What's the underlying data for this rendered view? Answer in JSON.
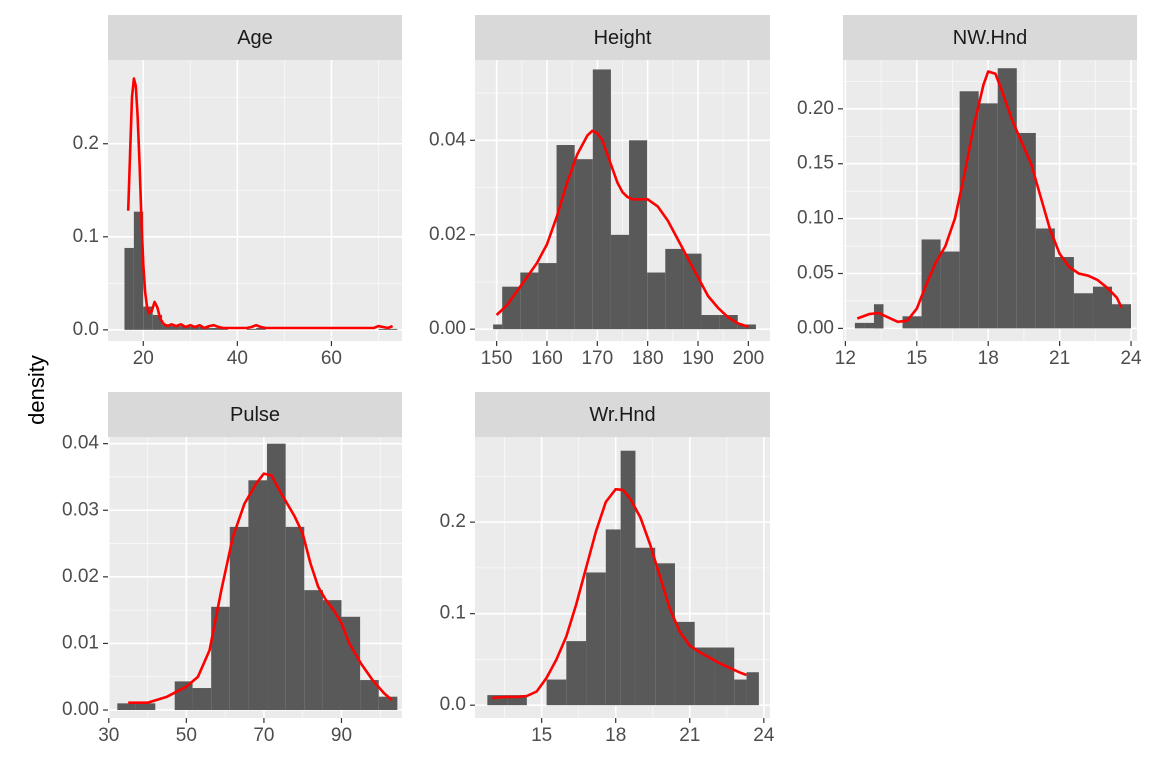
{
  "figure": {
    "ylabel": "density",
    "colors": {
      "panel_background": "#ebebeb",
      "strip_background": "#d9d9d9",
      "grid_major": "#ffffff",
      "bar_fill": "#595959",
      "density_line": "#ff0000"
    }
  },
  "chart_data": [
    {
      "type": "bar",
      "panel": "Age",
      "title": "Age",
      "xlabel": "",
      "ylabel": "density",
      "xlim": [
        12.5,
        75
      ],
      "ylim": [
        -0.012,
        0.29
      ],
      "x_ticks": [
        20,
        40,
        60
      ],
      "x_tick_labels": [
        "20",
        "40",
        "60"
      ],
      "y_ticks": [
        0.0,
        0.1,
        0.2
      ],
      "y_tick_labels": [
        "0.0",
        "0.1",
        "0.2"
      ],
      "bins": [
        {
          "x0": 16,
          "x1": 18,
          "density": 0.088
        },
        {
          "x0": 18,
          "x1": 20,
          "density": 0.127
        },
        {
          "x0": 20,
          "x1": 22,
          "density": 0.025
        },
        {
          "x0": 22,
          "x1": 24,
          "density": 0.016
        },
        {
          "x0": 24,
          "x1": 26,
          "density": 0.006
        },
        {
          "x0": 26,
          "x1": 28,
          "density": 0.004
        },
        {
          "x0": 28,
          "x1": 30,
          "density": 0.004
        },
        {
          "x0": 30,
          "x1": 32,
          "density": 0.003
        },
        {
          "x0": 32,
          "x1": 34,
          "density": 0.003
        },
        {
          "x0": 34,
          "x1": 36,
          "density": 0.002
        },
        {
          "x0": 36,
          "x1": 38,
          "density": 0.002
        },
        {
          "x0": 42,
          "x1": 44,
          "density": 0.001
        },
        {
          "x0": 44,
          "x1": 46,
          "density": 0.002
        },
        {
          "x0": 70,
          "x1": 72,
          "density": 0.001
        },
        {
          "x0": 72,
          "x1": 74,
          "density": 0.001
        }
      ],
      "density_curve": [
        [
          16.8,
          0.128
        ],
        [
          17.2,
          0.19
        ],
        [
          17.6,
          0.25
        ],
        [
          18.0,
          0.27
        ],
        [
          18.4,
          0.262
        ],
        [
          18.8,
          0.23
        ],
        [
          19.2,
          0.18
        ],
        [
          19.6,
          0.12
        ],
        [
          20.0,
          0.07
        ],
        [
          20.4,
          0.04
        ],
        [
          20.8,
          0.025
        ],
        [
          21.2,
          0.018
        ],
        [
          21.8,
          0.02
        ],
        [
          22.4,
          0.03
        ],
        [
          23.0,
          0.024
        ],
        [
          23.6,
          0.012
        ],
        [
          24.4,
          0.006
        ],
        [
          25.2,
          0.004
        ],
        [
          26.0,
          0.006
        ],
        [
          27.0,
          0.004
        ],
        [
          28.0,
          0.006
        ],
        [
          29.0,
          0.003
        ],
        [
          30.0,
          0.005
        ],
        [
          31.0,
          0.003
        ],
        [
          32.0,
          0.005
        ],
        [
          33.0,
          0.002
        ],
        [
          34.0,
          0.004
        ],
        [
          35.0,
          0.005
        ],
        [
          36.0,
          0.003
        ],
        [
          37.0,
          0.002
        ],
        [
          38.0,
          0.002
        ],
        [
          40.0,
          0.002
        ],
        [
          42.0,
          0.002
        ],
        [
          43.0,
          0.003
        ],
        [
          44.0,
          0.005
        ],
        [
          45.0,
          0.003
        ],
        [
          46.0,
          0.002
        ],
        [
          50.0,
          0.002
        ],
        [
          55.0,
          0.002
        ],
        [
          60.0,
          0.002
        ],
        [
          65.0,
          0.002
        ],
        [
          69.0,
          0.002
        ],
        [
          70.0,
          0.004
        ],
        [
          71.0,
          0.003
        ],
        [
          72.0,
          0.002
        ],
        [
          73.0,
          0.004
        ]
      ]
    },
    {
      "type": "bar",
      "panel": "Height",
      "title": "Height",
      "xlabel": "",
      "ylabel": "density",
      "xlim": [
        145.7,
        204.3
      ],
      "ylim": [
        -0.0025,
        0.057
      ],
      "x_ticks": [
        150,
        160,
        170,
        180,
        190,
        200
      ],
      "x_tick_labels": [
        "150",
        "160",
        "170",
        "180",
        "190",
        "200"
      ],
      "y_ticks": [
        0.0,
        0.02,
        0.04
      ],
      "y_tick_labels": [
        "0.00",
        "0.02",
        "0.04"
      ],
      "bins": [
        {
          "x0": 149.3,
          "x1": 151.1,
          "density": 0.001
        },
        {
          "x0": 151.1,
          "x1": 154.7,
          "density": 0.009
        },
        {
          "x0": 154.7,
          "x1": 158.3,
          "density": 0.012
        },
        {
          "x0": 158.3,
          "x1": 161.9,
          "density": 0.014
        },
        {
          "x0": 161.9,
          "x1": 165.5,
          "density": 0.039
        },
        {
          "x0": 165.5,
          "x1": 169.1,
          "density": 0.036
        },
        {
          "x0": 169.1,
          "x1": 172.7,
          "density": 0.055
        },
        {
          "x0": 172.7,
          "x1": 176.3,
          "density": 0.02
        },
        {
          "x0": 176.3,
          "x1": 179.9,
          "density": 0.04
        },
        {
          "x0": 179.9,
          "x1": 183.5,
          "density": 0.012
        },
        {
          "x0": 183.5,
          "x1": 187.1,
          "density": 0.017
        },
        {
          "x0": 187.1,
          "x1": 190.7,
          "density": 0.016
        },
        {
          "x0": 190.7,
          "x1": 194.3,
          "density": 0.003
        },
        {
          "x0": 194.3,
          "x1": 197.9,
          "density": 0.003
        },
        {
          "x0": 197.9,
          "x1": 201.5,
          "density": 0.001
        }
      ],
      "density_curve": [
        [
          150.0,
          0.003
        ],
        [
          152.0,
          0.005
        ],
        [
          154.0,
          0.008
        ],
        [
          156.0,
          0.011
        ],
        [
          158.0,
          0.014
        ],
        [
          160.0,
          0.018
        ],
        [
          162.0,
          0.024
        ],
        [
          164.0,
          0.031
        ],
        [
          166.0,
          0.037
        ],
        [
          168.0,
          0.041
        ],
        [
          169.0,
          0.042
        ],
        [
          170.0,
          0.0415
        ],
        [
          171.0,
          0.04
        ],
        [
          172.0,
          0.037
        ],
        [
          173.0,
          0.034
        ],
        [
          174.0,
          0.031
        ],
        [
          175.0,
          0.029
        ],
        [
          176.0,
          0.028
        ],
        [
          177.0,
          0.0275
        ],
        [
          178.0,
          0.0275
        ],
        [
          180.0,
          0.0275
        ],
        [
          182.0,
          0.026
        ],
        [
          184.0,
          0.023
        ],
        [
          186.0,
          0.019
        ],
        [
          188.0,
          0.015
        ],
        [
          190.0,
          0.011
        ],
        [
          192.0,
          0.007
        ],
        [
          194.0,
          0.0045
        ],
        [
          196.0,
          0.0025
        ],
        [
          198.0,
          0.0012
        ],
        [
          200.0,
          0.0005
        ]
      ]
    },
    {
      "type": "bar",
      "panel": "NW.Hnd",
      "title": "NW.Hnd",
      "xlabel": "",
      "ylabel": "density",
      "xlim": [
        11.9,
        24.25
      ],
      "ylim": [
        -0.0115,
        0.2445
      ],
      "x_ticks": [
        12,
        15,
        18,
        21,
        24
      ],
      "x_tick_labels": [
        "12",
        "15",
        "18",
        "21",
        "24"
      ],
      "y_ticks": [
        0.0,
        0.05,
        0.1,
        0.15,
        0.2
      ],
      "y_tick_labels": [
        "0.00",
        "0.05",
        "0.10",
        "0.15",
        "0.20"
      ],
      "bins": [
        {
          "x0": 12.4,
          "x1": 12.8,
          "density": 0.005
        },
        {
          "x0": 12.8,
          "x1": 13.6,
          "density": 0.005
        },
        {
          "x0": 13.6,
          "x1": 14.4,
          "density": 0.0
        },
        {
          "x0": 14.4,
          "x1": 15.2,
          "density": 0.011
        },
        {
          "x0": 15.2,
          "x1": 16.0,
          "density": 0.081
        },
        {
          "x0": 16.0,
          "x1": 16.8,
          "density": 0.07
        },
        {
          "x0": 16.8,
          "x1": 17.6,
          "density": 0.216
        },
        {
          "x0": 17.6,
          "x1": 18.4,
          "density": 0.205
        },
        {
          "x0": 18.4,
          "x1": 19.2,
          "density": 0.237
        },
        {
          "x0": 19.2,
          "x1": 20.0,
          "density": 0.178
        },
        {
          "x0": 20.0,
          "x1": 20.8,
          "density": 0.091
        },
        {
          "x0": 20.8,
          "x1": 21.6,
          "density": 0.065
        },
        {
          "x0": 21.6,
          "x1": 22.4,
          "density": 0.032
        },
        {
          "x0": 22.4,
          "x1": 23.2,
          "density": 0.038
        },
        {
          "x0": 23.2,
          "x1": 24.0,
          "density": 0.022
        }
      ],
      "extra_bins": [
        {
          "x0": 13.2,
          "x1": 13.6,
          "density": 0.022
        }
      ],
      "density_curve": [
        [
          12.5,
          0.009
        ],
        [
          13.0,
          0.013
        ],
        [
          13.4,
          0.014
        ],
        [
          13.8,
          0.01
        ],
        [
          14.2,
          0.006
        ],
        [
          14.6,
          0.007
        ],
        [
          15.0,
          0.018
        ],
        [
          15.4,
          0.04
        ],
        [
          15.8,
          0.06
        ],
        [
          16.2,
          0.075
        ],
        [
          16.6,
          0.1
        ],
        [
          17.0,
          0.14
        ],
        [
          17.4,
          0.185
        ],
        [
          17.8,
          0.222
        ],
        [
          18.0,
          0.234
        ],
        [
          18.3,
          0.232
        ],
        [
          18.6,
          0.215
        ],
        [
          19.0,
          0.19
        ],
        [
          19.4,
          0.17
        ],
        [
          19.8,
          0.15
        ],
        [
          20.2,
          0.12
        ],
        [
          20.6,
          0.09
        ],
        [
          21.0,
          0.068
        ],
        [
          21.4,
          0.056
        ],
        [
          21.8,
          0.05
        ],
        [
          22.2,
          0.048
        ],
        [
          22.6,
          0.044
        ],
        [
          23.0,
          0.037
        ],
        [
          23.4,
          0.028
        ],
        [
          23.6,
          0.019
        ]
      ]
    },
    {
      "type": "bar",
      "panel": "Pulse",
      "title": "Pulse",
      "xlabel": "",
      "ylabel": "density",
      "xlim": [
        29.8,
        105.6
      ],
      "ylim": [
        -0.0012,
        0.041
      ],
      "x_ticks": [
        30,
        50,
        70,
        90
      ],
      "x_tick_labels": [
        "30",
        "50",
        "70",
        "90"
      ],
      "y_ticks": [
        0.0,
        0.01,
        0.02,
        0.03,
        0.04
      ],
      "y_tick_labels": [
        "0.00",
        "0.01",
        "0.02",
        "0.03",
        "0.04"
      ],
      "bins": [
        {
          "x0": 32.2,
          "x1": 37.0,
          "density": 0.001
        },
        {
          "x0": 37.0,
          "x1": 42.0,
          "density": 0.001
        },
        {
          "x0": 42.0,
          "x1": 47.0,
          "density": 0.0
        },
        {
          "x0": 47.0,
          "x1": 51.6,
          "density": 0.0043
        },
        {
          "x0": 51.6,
          "x1": 56.4,
          "density": 0.0033
        },
        {
          "x0": 56.4,
          "x1": 61.2,
          "density": 0.0155
        },
        {
          "x0": 61.2,
          "x1": 66.0,
          "density": 0.0275
        },
        {
          "x0": 66.0,
          "x1": 70.8,
          "density": 0.0345
        },
        {
          "x0": 70.8,
          "x1": 75.6,
          "density": 0.04
        },
        {
          "x0": 75.6,
          "x1": 80.4,
          "density": 0.0275
        },
        {
          "x0": 80.4,
          "x1": 85.2,
          "density": 0.018
        },
        {
          "x0": 85.2,
          "x1": 90.0,
          "density": 0.0165
        },
        {
          "x0": 90.0,
          "x1": 94.8,
          "density": 0.014
        },
        {
          "x0": 94.8,
          "x1": 99.6,
          "density": 0.0045
        },
        {
          "x0": 99.6,
          "x1": 104.4,
          "density": 0.002
        }
      ],
      "density_curve": [
        [
          35.0,
          0.0011
        ],
        [
          40.0,
          0.0011
        ],
        [
          45.0,
          0.002
        ],
        [
          50.0,
          0.0035
        ],
        [
          53.0,
          0.005
        ],
        [
          56.0,
          0.009
        ],
        [
          59.0,
          0.018
        ],
        [
          62.0,
          0.026
        ],
        [
          65.0,
          0.031
        ],
        [
          68.0,
          0.034
        ],
        [
          70.0,
          0.0355
        ],
        [
          72.0,
          0.0352
        ],
        [
          74.0,
          0.033
        ],
        [
          76.0,
          0.031
        ],
        [
          78.0,
          0.029
        ],
        [
          80.0,
          0.0265
        ],
        [
          82.0,
          0.022
        ],
        [
          84.0,
          0.0185
        ],
        [
          86.0,
          0.0165
        ],
        [
          88.0,
          0.015
        ],
        [
          90.0,
          0.013
        ],
        [
          92.0,
          0.01
        ],
        [
          95.0,
          0.007
        ],
        [
          98.0,
          0.0045
        ],
        [
          101.0,
          0.0025
        ],
        [
          103.0,
          0.0015
        ]
      ]
    },
    {
      "type": "bar",
      "panel": "Wr.Hnd",
      "title": "Wr.Hnd",
      "xlabel": "",
      "ylabel": "density",
      "xlim": [
        12.3,
        24.25
      ],
      "ylim": [
        -0.014,
        0.293
      ],
      "x_ticks": [
        15,
        18,
        21,
        24
      ],
      "x_tick_labels": [
        "15",
        "18",
        "21",
        "24"
      ],
      "y_ticks": [
        0.0,
        0.1,
        0.2
      ],
      "y_tick_labels": [
        "0.0",
        "0.1",
        "0.2"
      ],
      "bins": [
        {
          "x0": 12.8,
          "x1": 13.6,
          "density": 0.011
        },
        {
          "x0": 13.6,
          "x1": 14.4,
          "density": 0.011
        },
        {
          "x0": 14.4,
          "x1": 15.2,
          "density": 0.0
        },
        {
          "x0": 15.2,
          "x1": 16.0,
          "density": 0.028
        },
        {
          "x0": 16.0,
          "x1": 16.8,
          "density": 0.07
        },
        {
          "x0": 16.8,
          "x1": 17.6,
          "density": 0.145
        },
        {
          "x0": 17.6,
          "x1": 18.2,
          "density": 0.192
        },
        {
          "x0": 18.2,
          "x1": 18.8,
          "density": 0.278
        },
        {
          "x0": 18.8,
          "x1": 19.6,
          "density": 0.172
        },
        {
          "x0": 19.6,
          "x1": 20.4,
          "density": 0.155
        },
        {
          "x0": 20.4,
          "x1": 21.2,
          "density": 0.091
        },
        {
          "x0": 21.2,
          "x1": 22.0,
          "density": 0.063
        },
        {
          "x0": 22.0,
          "x1": 22.8,
          "density": 0.063
        },
        {
          "x0": 22.8,
          "x1": 23.3,
          "density": 0.028
        },
        {
          "x0": 23.3,
          "x1": 23.8,
          "density": 0.036
        }
      ],
      "density_curve": [
        [
          13.0,
          0.008
        ],
        [
          13.5,
          0.009
        ],
        [
          14.0,
          0.009
        ],
        [
          14.4,
          0.01
        ],
        [
          14.8,
          0.015
        ],
        [
          15.2,
          0.03
        ],
        [
          15.6,
          0.05
        ],
        [
          16.0,
          0.075
        ],
        [
          16.4,
          0.11
        ],
        [
          16.8,
          0.15
        ],
        [
          17.2,
          0.19
        ],
        [
          17.6,
          0.222
        ],
        [
          18.0,
          0.236
        ],
        [
          18.3,
          0.235
        ],
        [
          18.6,
          0.225
        ],
        [
          19.0,
          0.205
        ],
        [
          19.4,
          0.175
        ],
        [
          19.8,
          0.14
        ],
        [
          20.2,
          0.105
        ],
        [
          20.6,
          0.08
        ],
        [
          21.0,
          0.065
        ],
        [
          21.4,
          0.058
        ],
        [
          21.8,
          0.052
        ],
        [
          22.2,
          0.046
        ],
        [
          22.6,
          0.041
        ],
        [
          23.0,
          0.036
        ],
        [
          23.3,
          0.033
        ]
      ]
    }
  ]
}
